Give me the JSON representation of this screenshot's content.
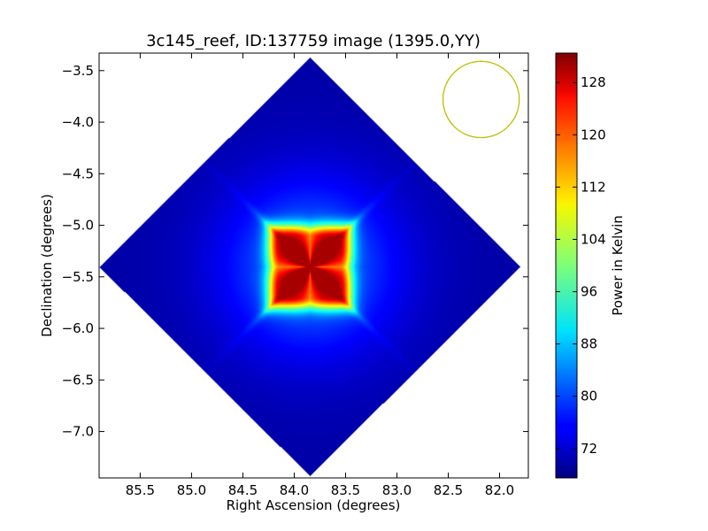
{
  "chart_data": {
    "type": "heatmap",
    "title": "3c145_reef, ID:137759 image (1395.0,YY)",
    "xlabel": "Right Ascension (degrees)",
    "ylabel": "Declination (degrees)",
    "xlim": [
      85.9,
      81.72
    ],
    "ylim": [
      -7.45,
      -3.33
    ],
    "x_ticks": [
      "85.5",
      "85.0",
      "84.5",
      "84.0",
      "83.5",
      "83.0",
      "82.5",
      "82.0"
    ],
    "x_tick_values": [
      85.5,
      85.0,
      84.5,
      84.0,
      83.5,
      83.0,
      82.5,
      82.0
    ],
    "y_ticks": [
      "−3.5",
      "−4.0",
      "−4.5",
      "−5.0",
      "−5.5",
      "−6.0",
      "−6.5",
      "−7.0"
    ],
    "y_tick_values": [
      -3.5,
      -4.0,
      -4.5,
      -5.0,
      -5.5,
      -6.0,
      -6.5,
      -7.0
    ],
    "colorbar": {
      "label": "Power in Kelvin",
      "colormap": "jet",
      "range": [
        67.5,
        132.5
      ],
      "ticks": [
        "72",
        "80",
        "88",
        "96",
        "104",
        "112",
        "120",
        "128"
      ],
      "tick_values": [
        72,
        80,
        88,
        96,
        104,
        112,
        120,
        128
      ]
    },
    "image": {
      "center": [
        83.85,
        -5.4
      ],
      "half_width_ra": 2.05,
      "half_height_dec": 2.03,
      "background_value": 70,
      "peak_value": 130
    },
    "beam_circle": {
      "center": [
        82.18,
        -3.78
      ],
      "radius_deg": 0.37,
      "color": "#bfbf00"
    },
    "grid": false
  }
}
